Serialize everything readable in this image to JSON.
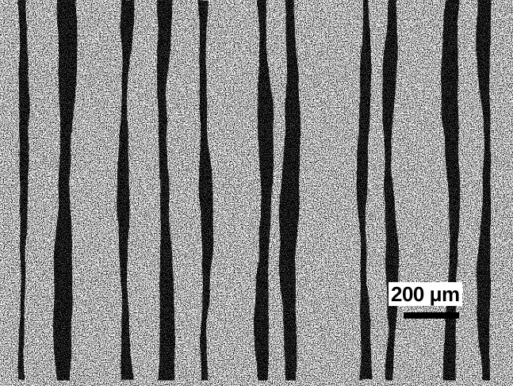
{
  "scale_bar": {
    "label": "200 μm"
  },
  "colors": {
    "ink": "#000000",
    "paper": "#ffffff"
  }
}
